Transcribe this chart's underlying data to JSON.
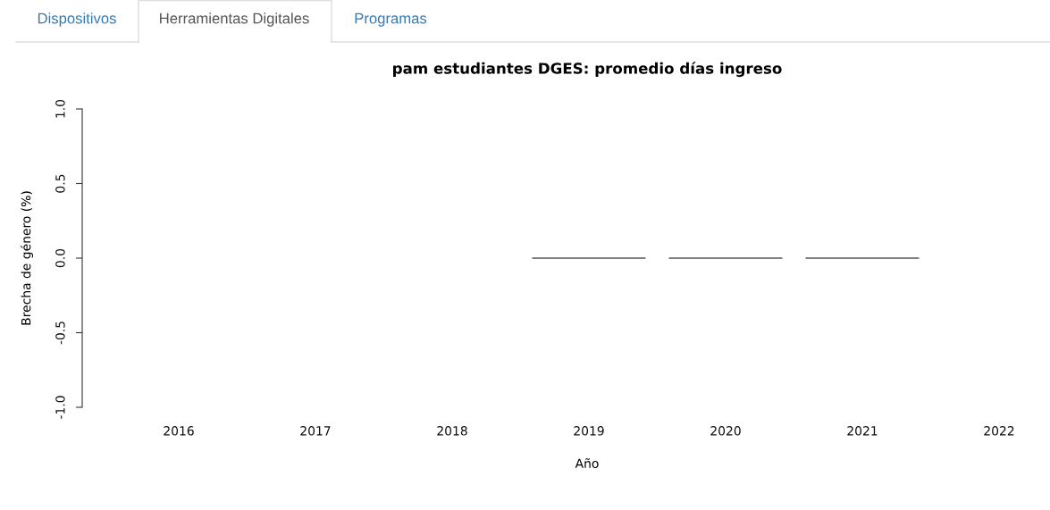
{
  "chart_data": {
    "type": "bar",
    "title": "pam estudiantes DGES: promedio días ingreso",
    "xlabel": "Año",
    "ylabel": "Brecha de género (%)",
    "annotations": [
      "Dispositivos",
      "Herramientas Digitales",
      "Programas"
    ],
    "categories": [
      "2016",
      "2017",
      "2018",
      "2019",
      "2020",
      "2021",
      "2022"
    ],
    "values": [
      null,
      null,
      null,
      0,
      0,
      0,
      null
    ],
    "color": "#7f7f7f",
    "ylim": [
      -1,
      1
    ],
    "yticks": [
      {
        "value": -1,
        "label": "-1.0"
      },
      {
        "value": -0.5,
        "label": "-0.5"
      },
      {
        "value": 0,
        "label": "0.0"
      },
      {
        "value": 0.5,
        "label": "0.5"
      },
      {
        "value": 1,
        "label": "1.0"
      }
    ]
  }
}
